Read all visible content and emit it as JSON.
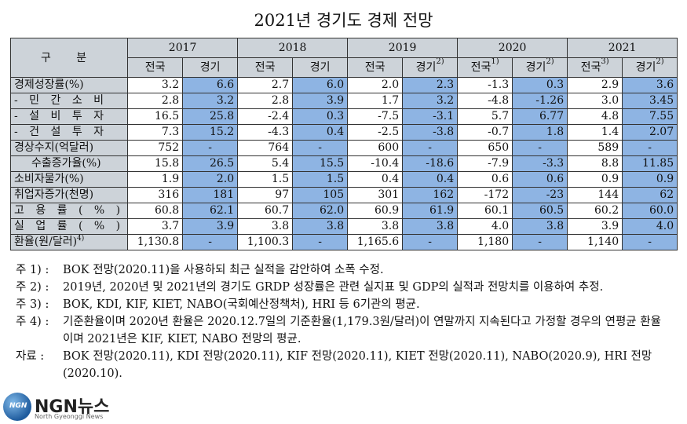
{
  "title": "2021년 경기도 경제 전망",
  "header": {
    "gubun": "구 분",
    "years": [
      "2017",
      "2018",
      "2019",
      "2020",
      "2021"
    ],
    "sub": [
      {
        "label": "전국",
        "sup": ""
      },
      {
        "label": "경기",
        "sup": ""
      },
      {
        "label": "전국",
        "sup": ""
      },
      {
        "label": "경기",
        "sup": ""
      },
      {
        "label": "전국",
        "sup": ""
      },
      {
        "label": "경기",
        "sup": "2)"
      },
      {
        "label": "전국",
        "sup": "1)"
      },
      {
        "label": "경기",
        "sup": "2)"
      },
      {
        "label": "전국",
        "sup": "3)"
      },
      {
        "label": "경기",
        "sup": "2)"
      }
    ]
  },
  "rows": [
    {
      "label": "경제성장률(%)",
      "vals": [
        "3.2",
        "6.6",
        "2.7",
        "6.0",
        "2.0",
        "2.3",
        "-1.3",
        "0.3",
        "2.9",
        "3.6"
      ]
    },
    {
      "label": "- 민 간 소 비",
      "vals": [
        "2.8",
        "3.2",
        "2.8",
        "3.9",
        "1.7",
        "3.2",
        "-4.8",
        "-1.26",
        "3.0",
        "3.45"
      ]
    },
    {
      "label": "- 설 비 투 자",
      "vals": [
        "16.5",
        "25.8",
        "-2.4",
        "0.3",
        "-7.5",
        "-3.1",
        "5.7",
        "6.77",
        "4.8",
        "7.55"
      ]
    },
    {
      "label": "- 건 설 투 자",
      "vals": [
        "7.3",
        "15.2",
        "-4.3",
        "0.4",
        "-2.5",
        "-3.8",
        "-0.7",
        "1.8",
        "1.4",
        "2.07"
      ]
    },
    {
      "label": "경상수지(억달러)",
      "vals": [
        "752",
        "-",
        "764",
        "-",
        "600",
        "-",
        "650",
        "-",
        "589",
        "-"
      ]
    },
    {
      "label": "수출증가율(%)",
      "vals": [
        "15.8",
        "26.5",
        "5.4",
        "15.5",
        "-10.4",
        "-18.6",
        "-7.9",
        "-3.3",
        "8.8",
        "11.85"
      ]
    },
    {
      "label": "소비자물가(%)",
      "vals": [
        "1.9",
        "2.0",
        "1.5",
        "1.5",
        "0.4",
        "0.4",
        "0.6",
        "0.6",
        "0.9",
        "0.9"
      ]
    },
    {
      "label": "취업자증가(천명)",
      "vals": [
        "316",
        "181",
        "97",
        "105",
        "301",
        "162",
        "-172",
        "-23",
        "144",
        "62"
      ]
    },
    {
      "label": "고 용 률 ( % )",
      "vals": [
        "60.8",
        "62.1",
        "60.7",
        "62.0",
        "60.9",
        "61.9",
        "60.1",
        "60.5",
        "60.2",
        "60.0"
      ]
    },
    {
      "label": "실 업 률 ( % )",
      "vals": [
        "3.7",
        "3.9",
        "3.8",
        "3.8",
        "3.8",
        "3.8",
        "4.0",
        "3.8",
        "3.9",
        "4.0"
      ]
    },
    {
      "label": "환율(원/달러)",
      "sup": "4)",
      "vals": [
        "1,130.8",
        "-",
        "1,100.3",
        "-",
        "1,165.6",
        "-",
        "1,180",
        "-",
        "1,140",
        "-"
      ]
    }
  ],
  "notes": [
    {
      "key": "주 1) :",
      "text": "BOK 전망(2020.11)을 사용하되 최근 실적을 감안하여 소폭 수정."
    },
    {
      "key": "주 2) :",
      "text": "2019년, 2020년 및 2021년의 경기도 GRDP 성장률은 관련 실지표 및 GDP의 실적과 전망치를 이용하여 추정."
    },
    {
      "key": "주 3) :",
      "text": "BOK, KDI, KIF, KIET, NABO(국회예산정책처), HRI 등 6기관의 평균."
    },
    {
      "key": "주 4) :",
      "text": "기준환율이며 2020년 환율은 2020.12.7일의 기준환율(1,179.3원/달러)이 연말까지 지속된다고 가정할 경우의 연평균 환율이며 2021년은 KIF, KIET, NABO 전망의 평균."
    },
    {
      "key": "자료 :",
      "text": "BOK 전망(2020.11), KDI 전망(2020.11), KIF 전망(2020.11), KIET 전망(2020.11), NABO(2020.9), HRI 전망(2020.10)."
    }
  ],
  "logo": {
    "badge": "NGN",
    "brand": "NGN뉴스",
    "tagline": "North Gyeonggi News"
  }
}
